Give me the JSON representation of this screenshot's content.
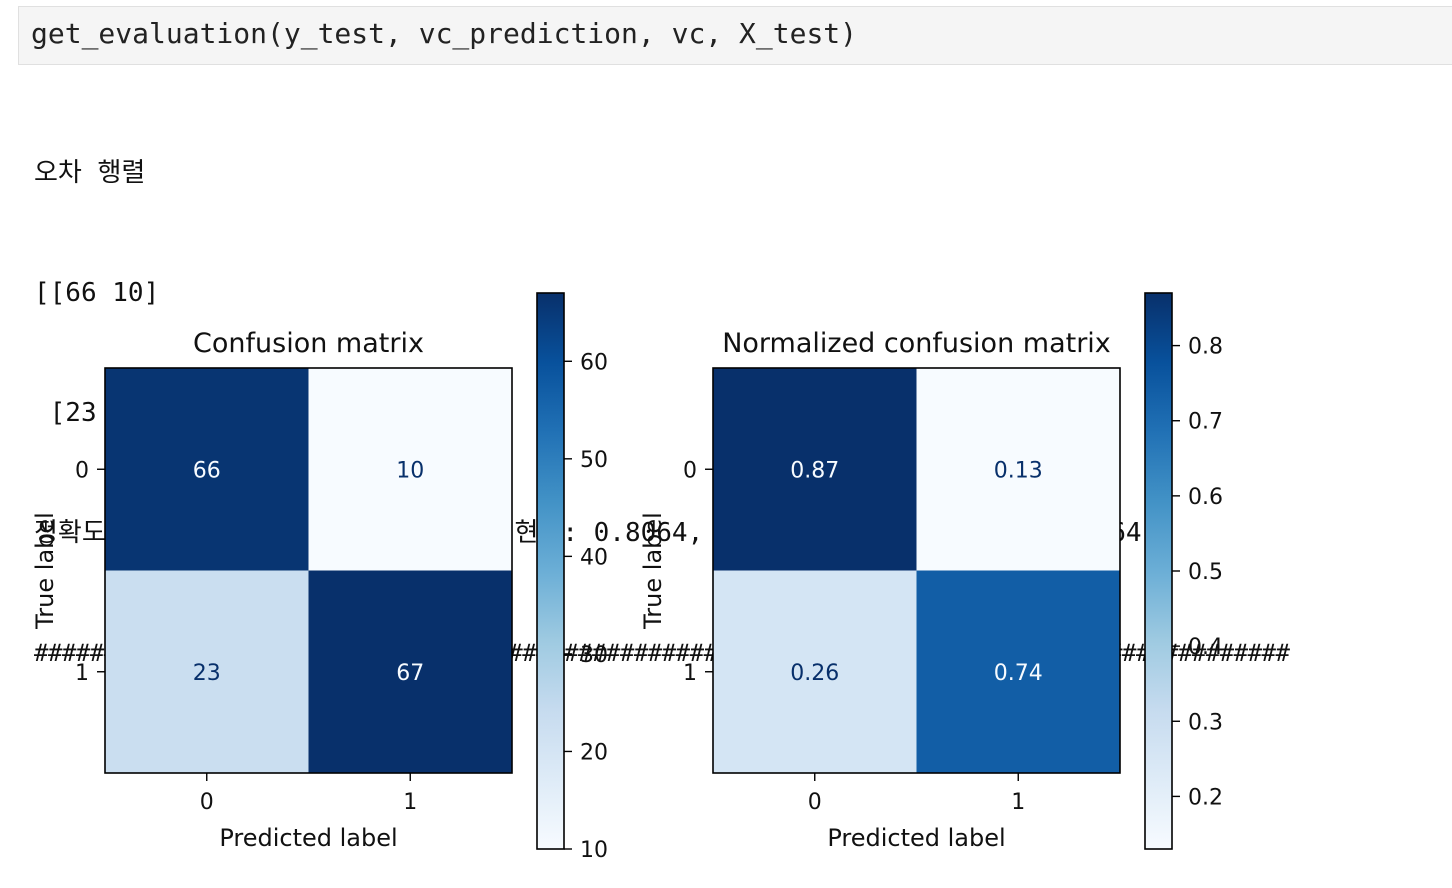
{
  "cell": {
    "code": "get_evaluation(y_test, vc_prediction, vc, X_test)"
  },
  "output": {
    "lines": [
      "오차 행렬",
      "[[66 10]",
      " [23 67]]",
      "정확도: 0.8012, 정밀도: 0.8059, 재현율: 0.8064, F1: 0.8012, ROC_AUC: 0.8064",
      "##########################################################################################"
    ]
  },
  "chart_data": [
    {
      "type": "heatmap",
      "title": "Confusion matrix",
      "xlabel": "Predicted label",
      "ylabel": "True label",
      "x_ticks": [
        "0",
        "1"
      ],
      "y_ticks": [
        "0",
        "1"
      ],
      "matrix": [
        [
          66,
          10
        ],
        [
          23,
          67
        ]
      ],
      "cell_labels": [
        [
          "66",
          "10"
        ],
        [
          "23",
          "67"
        ]
      ],
      "colormap": "Blues",
      "colorbar": {
        "range": [
          10,
          67
        ],
        "ticks": [
          10,
          20,
          30,
          40,
          50,
          60
        ],
        "tick_labels": [
          "10",
          "20",
          "30",
          "40",
          "50",
          "60"
        ]
      },
      "colors": {
        "dark_cell": "#08306b",
        "light_cell": "#f7fbff",
        "mid_cell": "#cadef0",
        "dark_text": "#08306b",
        "light_text": "#f7fbff"
      }
    },
    {
      "type": "heatmap",
      "title": "Normalized confusion matrix",
      "xlabel": "Predicted label",
      "ylabel": "True label",
      "x_ticks": [
        "0",
        "1"
      ],
      "y_ticks": [
        "0",
        "1"
      ],
      "matrix": [
        [
          0.87,
          0.13
        ],
        [
          0.26,
          0.74
        ]
      ],
      "cell_labels": [
        [
          "0.87",
          "0.13"
        ],
        [
          "0.26",
          "0.74"
        ]
      ],
      "colormap": "Blues",
      "colorbar": {
        "range": [
          0.13,
          0.87
        ],
        "ticks": [
          0.2,
          0.3,
          0.4,
          0.5,
          0.6,
          0.7,
          0.8
        ],
        "tick_labels": [
          "0.2",
          "0.3",
          "0.4",
          "0.5",
          "0.6",
          "0.7",
          "0.8"
        ]
      },
      "colors": {
        "dark_cell": "#08306b",
        "light_cell": "#f7fbff",
        "mid_cell": "#d8e7f5",
        "high_cell": "#0d57a1",
        "dark_text": "#08306b",
        "light_text": "#f7fbff"
      }
    }
  ]
}
